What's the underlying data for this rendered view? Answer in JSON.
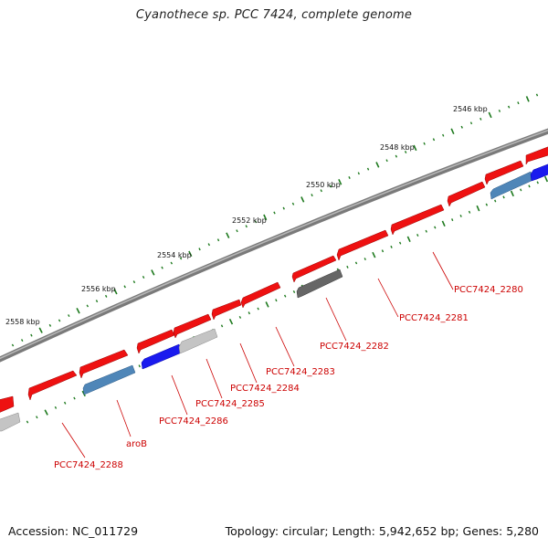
{
  "title": "Cyanothece sp. PCC 7424, complete genome",
  "footer": {
    "accession": "Accession: NC_011729",
    "summary": "Topology: circular; Length: 5,942,652 bp; Genes: 5,280"
  },
  "colors": {
    "forward_gene": "#ee1111",
    "reverse_gene_blue": "#1a1aee",
    "reverse_gene_steel": "#4f86b8",
    "reverse_gene_light": "#c4c4c4",
    "reverse_gene_dark": "#666666",
    "label": "#cc0000",
    "tick": "#1e7a1e",
    "backbone": "#8a8a8a"
  },
  "kbp_labels": [
    "2546 kbp",
    "2548 kbp",
    "2550 kbp",
    "2552 kbp",
    "2554 kbp",
    "2556 kbp",
    "2558 kbp"
  ],
  "gene_labels": [
    "PCC7424_2280",
    "PCC7424_2281",
    "PCC7424_2282",
    "PCC7424_2283",
    "PCC7424_2284",
    "PCC7424_2285",
    "PCC7424_2286",
    "aroB",
    "PCC7424_2288"
  ]
}
